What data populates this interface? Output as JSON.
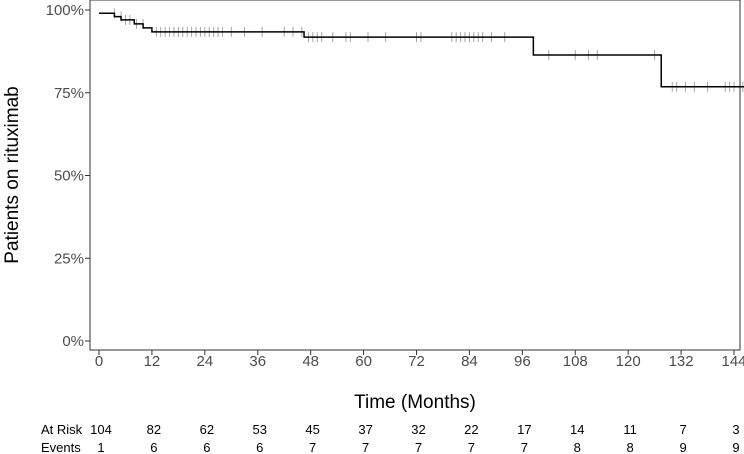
{
  "chart_data": {
    "type": "line",
    "subtype": "kaplan-meier",
    "title": "",
    "xlabel": "Time (Months)",
    "ylabel": "Patients on rituximab",
    "xlim": [
      -2,
      147
    ],
    "ylim": [
      0,
      100
    ],
    "x_ticks": [
      0,
      12,
      24,
      36,
      48,
      60,
      72,
      84,
      96,
      108,
      120,
      132,
      144
    ],
    "x_tick_labels": [
      "0",
      "12",
      "24",
      "36",
      "48",
      "60",
      "72",
      "84",
      "96",
      "108",
      "120",
      "132",
      "144"
    ],
    "y_ticks": [
      0,
      25,
      50,
      75,
      100
    ],
    "y_tick_labels": [
      "0%",
      "25%",
      "50%",
      "75%",
      "100%"
    ],
    "grid": false,
    "line_color": "#000000",
    "censor_color": "#a6a6a6",
    "series": [
      {
        "steps": [
          [
            0,
            99.0
          ],
          [
            3.5,
            98.0
          ],
          [
            5,
            97.0
          ],
          [
            8,
            95.8
          ],
          [
            10,
            94.6
          ],
          [
            12,
            93.4
          ],
          [
            46.5,
            91.8
          ],
          [
            98.5,
            86.4
          ],
          [
            127.5,
            76.8
          ],
          [
            146.5,
            76.8
          ]
        ],
        "censored": [
          {
            "t": 3.5,
            "s": 99.0
          },
          {
            "t": 5,
            "s": 98.0
          },
          {
            "t": 6,
            "s": 97.0
          },
          {
            "t": 7,
            "s": 97.0
          },
          {
            "t": 8.5,
            "s": 95.8
          },
          {
            "t": 10,
            "s": 95.8
          },
          {
            "t": 13,
            "s": 93.4
          },
          {
            "t": 14,
            "s": 93.4
          },
          {
            "t": 15,
            "s": 93.4
          },
          {
            "t": 16,
            "s": 93.4
          },
          {
            "t": 17,
            "s": 93.4
          },
          {
            "t": 18,
            "s": 93.4
          },
          {
            "t": 19,
            "s": 93.4
          },
          {
            "t": 20,
            "s": 93.4
          },
          {
            "t": 21,
            "s": 93.4
          },
          {
            "t": 22,
            "s": 93.4
          },
          {
            "t": 23,
            "s": 93.4
          },
          {
            "t": 24,
            "s": 93.4
          },
          {
            "t": 25,
            "s": 93.4
          },
          {
            "t": 26,
            "s": 93.4
          },
          {
            "t": 27,
            "s": 93.4
          },
          {
            "t": 28,
            "s": 93.4
          },
          {
            "t": 30,
            "s": 93.4
          },
          {
            "t": 33,
            "s": 93.4
          },
          {
            "t": 37,
            "s": 93.4
          },
          {
            "t": 42,
            "s": 93.4
          },
          {
            "t": 44,
            "s": 93.4
          },
          {
            "t": 46,
            "s": 93.4
          },
          {
            "t": 47.5,
            "s": 91.8
          },
          {
            "t": 48.5,
            "s": 91.8
          },
          {
            "t": 49.5,
            "s": 91.8
          },
          {
            "t": 50.5,
            "s": 91.8
          },
          {
            "t": 53,
            "s": 91.8
          },
          {
            "t": 56,
            "s": 91.8
          },
          {
            "t": 57,
            "s": 91.8
          },
          {
            "t": 61,
            "s": 91.8
          },
          {
            "t": 65,
            "s": 91.8
          },
          {
            "t": 72,
            "s": 91.8
          },
          {
            "t": 73,
            "s": 91.8
          },
          {
            "t": 80,
            "s": 91.8
          },
          {
            "t": 81,
            "s": 91.8
          },
          {
            "t": 82,
            "s": 91.8
          },
          {
            "t": 83,
            "s": 91.8
          },
          {
            "t": 84,
            "s": 91.8
          },
          {
            "t": 85,
            "s": 91.8
          },
          {
            "t": 86,
            "s": 91.8
          },
          {
            "t": 87,
            "s": 91.8
          },
          {
            "t": 89,
            "s": 91.8
          },
          {
            "t": 92,
            "s": 91.8
          },
          {
            "t": 102,
            "s": 86.4
          },
          {
            "t": 108,
            "s": 86.4
          },
          {
            "t": 111,
            "s": 86.4
          },
          {
            "t": 113,
            "s": 86.4
          },
          {
            "t": 126,
            "s": 86.4
          },
          {
            "t": 130,
            "s": 76.8
          },
          {
            "t": 131,
            "s": 76.8
          },
          {
            "t": 133,
            "s": 76.8
          },
          {
            "t": 135,
            "s": 76.8
          },
          {
            "t": 138,
            "s": 76.8
          },
          {
            "t": 142,
            "s": 76.8
          },
          {
            "t": 143,
            "s": 76.8
          },
          {
            "t": 144,
            "s": 76.8
          },
          {
            "t": 146,
            "s": 76.8
          }
        ]
      }
    ],
    "risk_table": {
      "times": [
        0,
        12,
        24,
        36,
        48,
        60,
        72,
        84,
        96,
        108,
        120,
        132,
        144
      ],
      "rows": [
        {
          "label": "At Risk",
          "values": [
            "104",
            "82",
            "62",
            "53",
            "45",
            "37",
            "32",
            "22",
            "17",
            "14",
            "11",
            "7",
            "3"
          ]
        },
        {
          "label": "Events",
          "values": [
            "1",
            "6",
            "6",
            "6",
            "7",
            "7",
            "7",
            "7",
            "7",
            "8",
            "8",
            "9",
            "9"
          ]
        }
      ]
    }
  }
}
